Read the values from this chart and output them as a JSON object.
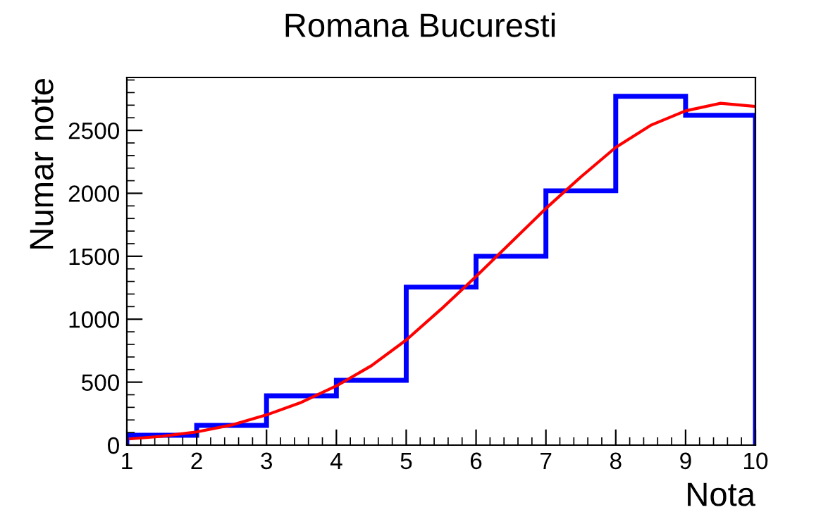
{
  "chart_data": {
    "type": "histogram",
    "title": "Romana Bucuresti",
    "xlabel": "Nota",
    "ylabel": "Numar note",
    "bins": [
      1,
      2,
      3,
      4,
      5,
      6,
      7,
      8,
      9,
      10
    ],
    "values": [
      78,
      157,
      392,
      515,
      1255,
      1500,
      2020,
      2770,
      2620
    ],
    "color": "#0000ff",
    "series": [
      {
        "type": "line",
        "color": "#ff0000",
        "x": [
          1.05,
          1.5,
          2,
          2.5,
          3,
          3.5,
          4,
          4.5,
          5,
          5.5,
          6,
          6.5,
          7,
          7.5,
          8,
          8.5,
          9,
          9.5,
          10
        ],
        "values": [
          50,
          70,
          105,
          160,
          240,
          340,
          470,
          630,
          835,
          1080,
          1340,
          1610,
          1880,
          2130,
          2365,
          2540,
          2655,
          2715,
          2690
        ]
      }
    ],
    "xlim": [
      1,
      10
    ],
    "ylim": [
      0,
      2920
    ],
    "xticks": [
      1,
      2,
      3,
      4,
      5,
      6,
      7,
      8,
      9,
      10
    ],
    "yticks": [
      0,
      500,
      1000,
      1500,
      2000,
      2500
    ],
    "grid": false,
    "legend": false
  }
}
